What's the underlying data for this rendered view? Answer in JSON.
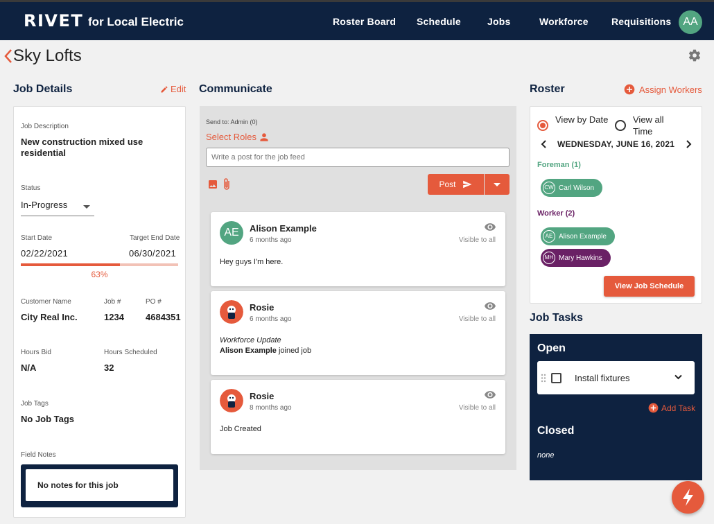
{
  "nav": {
    "brand": "RIVET",
    "brand_sub": "for Local Electric",
    "links": [
      "Roster Board",
      "Schedule",
      "Jobs",
      "Workforce",
      "Requisitions"
    ],
    "avatar": "AA"
  },
  "page": {
    "title": "Sky Lofts"
  },
  "job_details": {
    "title": "Job Details",
    "edit_label": "Edit",
    "description_label": "Job Description",
    "description": "New construction mixed use residential",
    "status_label": "Status",
    "status_value": "In-Progress",
    "start_label": "Start Date",
    "start_value": "02/22/2021",
    "end_label": "Target End Date",
    "end_value": "06/30/2021",
    "progress": 0.63,
    "progress_text": "63%",
    "customer_label": "Customer Name",
    "customer_value": "City Real Inc.",
    "job_no_label": "Job #",
    "job_no_value": "1234",
    "po_label": "PO #",
    "po_value": "4684351",
    "hours_bid_label": "Hours Bid",
    "hours_bid_value": "N/A",
    "hours_sched_label": "Hours Scheduled",
    "hours_sched_value": "32",
    "tags_label": "Job Tags",
    "tags_value": "No Job Tags",
    "notes_label": "Field Notes",
    "notes_value": "No notes for this job"
  },
  "communicate": {
    "title": "Communicate",
    "send_to": "Send to: Admin (0)",
    "select_roles": "Select Roles",
    "post_placeholder": "Write a post for the job feed",
    "post_label": "Post",
    "feed": [
      {
        "avatar": "AE",
        "name": "Alison Example",
        "time": "6 months ago",
        "visibility": "Visible to all",
        "body": "Hey guys I'm here."
      },
      {
        "avatar": "",
        "name": "Rosie",
        "time": "6 months ago",
        "visibility": "Visible to all",
        "update_label": "Workforce Update",
        "update_name": "Alison Example",
        "update_rest": " joined job"
      },
      {
        "avatar": "",
        "name": "Rosie",
        "time": "8 months ago",
        "visibility": "Visible to all",
        "body": "Job Created"
      }
    ]
  },
  "roster": {
    "title": "Roster",
    "assign_label": "Assign Workers",
    "view_by_date": "View by Date",
    "view_all_time": "View all Time",
    "date": "WEDNESDAY, JUNE 16, 2021",
    "foreman_label": "Foreman (1)",
    "foreman": [
      {
        "initials": "CW",
        "name": "Carl Wilson"
      }
    ],
    "worker_label": "Worker (2)",
    "workers": [
      {
        "initials": "AE",
        "name": "Alison Example"
      },
      {
        "initials": "MH",
        "name": "Mary Hawkins"
      }
    ],
    "schedule_button": "View Job Schedule"
  },
  "tasks": {
    "title": "Job Tasks",
    "open_label": "Open",
    "open_items": [
      "Install fixtures"
    ],
    "add_task": "Add Task",
    "closed_label": "Closed",
    "closed_value": "none"
  },
  "colors": {
    "navy": "#0e2240",
    "accent": "#e55a3c",
    "green": "#52a581",
    "purple": "#6a2165"
  }
}
